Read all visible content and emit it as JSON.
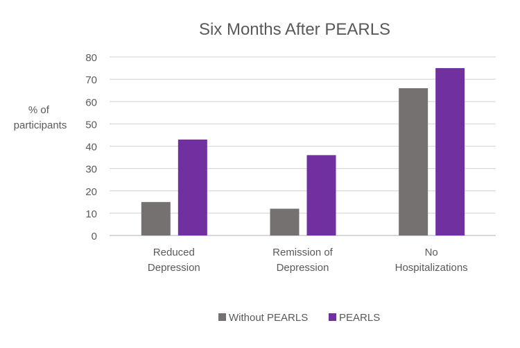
{
  "chart_data": {
    "type": "bar",
    "title": "Six Months After PEARLS",
    "ylabel": "% of participants",
    "ylabel_lines": [
      "% of",
      "participants"
    ],
    "xlabel": "",
    "categories": [
      "Reduced Depression",
      "Remission of Depression",
      "No Hospitalizations"
    ],
    "category_lines": [
      [
        "Reduced",
        "Depression"
      ],
      [
        "Remission of",
        "Depression"
      ],
      [
        "No",
        "Hospitalizations"
      ]
    ],
    "series": [
      {
        "name": "Without PEARLS",
        "values": [
          15,
          12,
          66
        ],
        "color": "#767171"
      },
      {
        "name": "PEARLS",
        "values": [
          43,
          36,
          75
        ],
        "color": "#7030A0"
      }
    ],
    "ylim": [
      0,
      80
    ],
    "yticks": [
      0,
      10,
      20,
      30,
      40,
      50,
      60,
      70,
      80
    ],
    "grid": true,
    "legend": "bottom"
  }
}
